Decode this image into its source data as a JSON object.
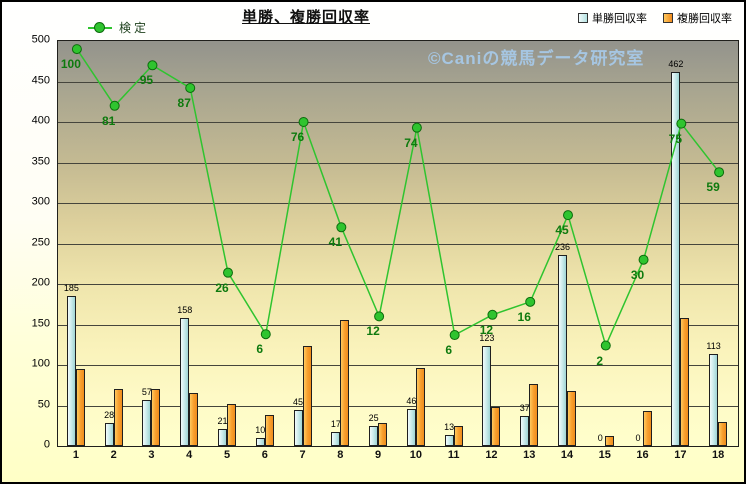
{
  "header": {
    "title": "単勝、複勝回収率",
    "legend_left": {
      "label": "検定"
    },
    "legend_right": [
      {
        "label": "単勝回収率",
        "swatch_color": "#cfeeee"
      },
      {
        "label": "複勝回収率",
        "swatch_color": "#f89e2f"
      }
    ]
  },
  "watermark": "©Caniの競馬データ研究室",
  "chart_data": {
    "type": "bar",
    "title": "単勝、複勝回収率",
    "categories": [
      "1",
      "2",
      "3",
      "4",
      "5",
      "6",
      "7",
      "8",
      "9",
      "10",
      "11",
      "12",
      "13",
      "14",
      "15",
      "16",
      "17",
      "18"
    ],
    "series": [
      {
        "name": "単勝回収率",
        "type": "bar",
        "color": "#cfeeee",
        "data_labels": true,
        "values": [
          185,
          28,
          57,
          158,
          21,
          10,
          45,
          17,
          25,
          46,
          13,
          123,
          37,
          236,
          0,
          0,
          462,
          113
        ]
      },
      {
        "name": "複勝回収率",
        "type": "bar",
        "color": "#f89e2f",
        "data_labels": false,
        "values": [
          95,
          70,
          70,
          65,
          52,
          38,
          123,
          155,
          28,
          96,
          25,
          48,
          76,
          68,
          12,
          43,
          158,
          30
        ]
      },
      {
        "name": "検定",
        "type": "line",
        "color": "#2fc42f",
        "point_labels": [
          "100",
          "81",
          "95",
          "87",
          "26",
          "6",
          "76",
          "41",
          "12",
          "74",
          "6",
          "12",
          "16",
          "45",
          "2",
          "30",
          "75",
          "59"
        ],
        "plotted_left_axis_values": [
          490,
          420,
          470,
          442,
          214,
          138,
          400,
          270,
          160,
          393,
          137,
          162,
          178,
          285,
          124,
          230,
          398,
          338
        ]
      }
    ],
    "xlabel": "",
    "ylabel": "",
    "ylim": [
      0,
      500
    ],
    "ytick_step": 50,
    "grid": true,
    "legend_position": "top"
  }
}
